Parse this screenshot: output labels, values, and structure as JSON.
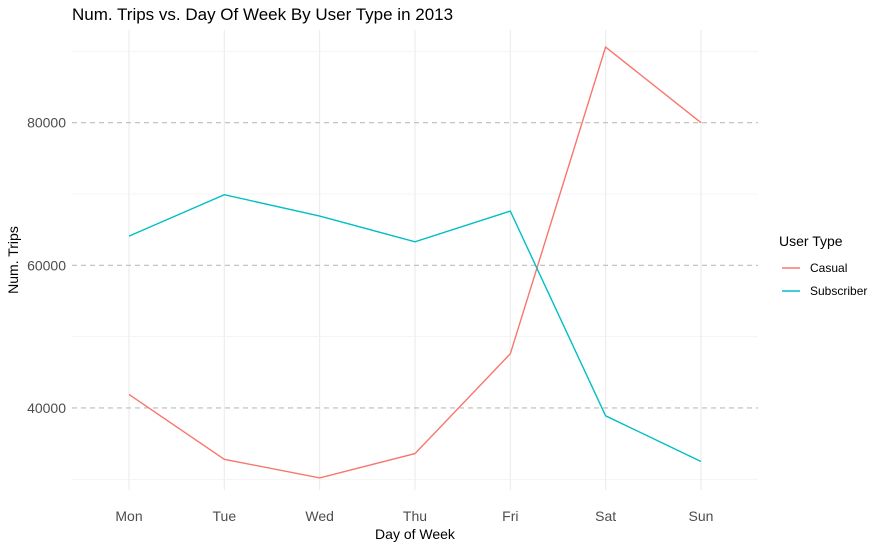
{
  "chart_data": {
    "type": "line",
    "title": "Num. Trips vs. Day Of Week By User Type in 2013",
    "xlabel": "Day of Week",
    "ylabel": "Num. Trips",
    "categories": [
      "Mon",
      "Tue",
      "Wed",
      "Thu",
      "Fri",
      "Sat",
      "Sun"
    ],
    "ylim": [
      28500,
      93000
    ],
    "y_ticks": [
      40000,
      60000,
      80000
    ],
    "y_tick_labels": [
      "40000",
      "60000",
      "80000"
    ],
    "legend_title": "User Type",
    "legend_position": "right",
    "series": [
      {
        "name": "Casual",
        "color": "#F8766D",
        "values": [
          41900,
          32800,
          30200,
          33600,
          47600,
          90600,
          80000
        ]
      },
      {
        "name": "Subscriber",
        "color": "#00BFC4",
        "values": [
          64100,
          69900,
          66900,
          63300,
          67600,
          38900,
          32500
        ]
      }
    ],
    "grid": true
  }
}
